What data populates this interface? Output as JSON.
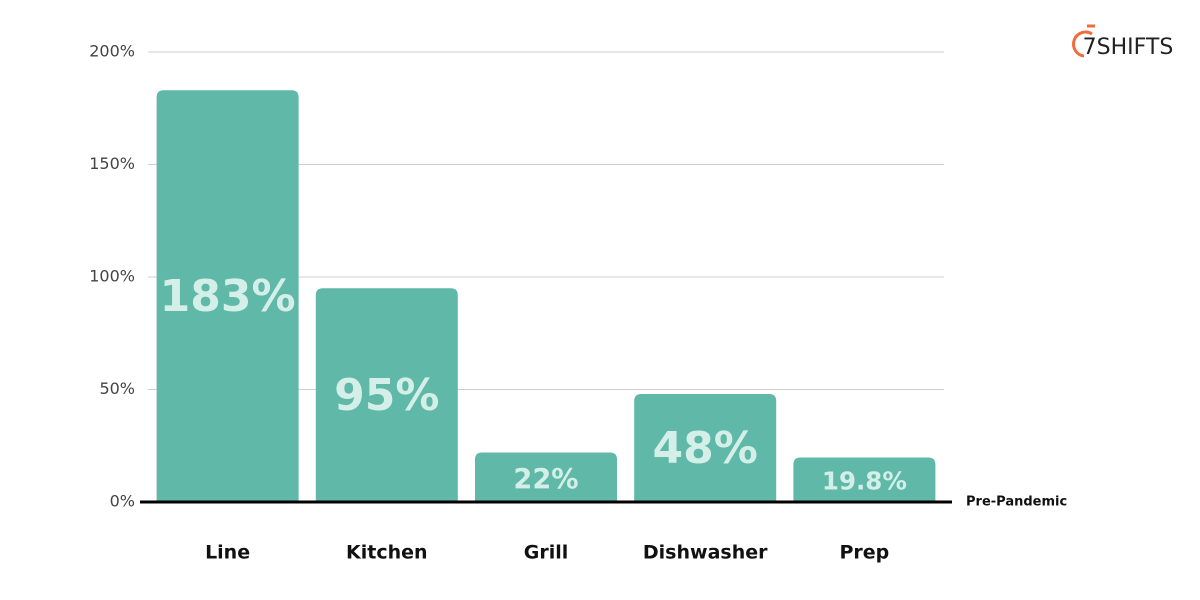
{
  "chart_data": {
    "type": "bar",
    "logo": "7SHIFTS",
    "categories": [
      "Line",
      "Kitchen",
      "Grill",
      "Dishwasher",
      "Prep"
    ],
    "values": [
      183,
      95,
      22,
      48,
      19.8
    ],
    "value_labels": [
      "183%",
      "95%",
      "22%",
      "48%",
      "19.8%"
    ],
    "color": "#5fb8a8",
    "ylim": [
      0,
      200
    ],
    "yticks": [
      {
        "value": 0,
        "label": "0%"
      },
      {
        "value": 50,
        "label": "50%"
      },
      {
        "value": 100,
        "label": "100%"
      },
      {
        "value": 150,
        "label": "150%"
      },
      {
        "value": 200,
        "label": "200%"
      }
    ],
    "grid": true,
    "annotation": "Pre-Pandemic"
  }
}
